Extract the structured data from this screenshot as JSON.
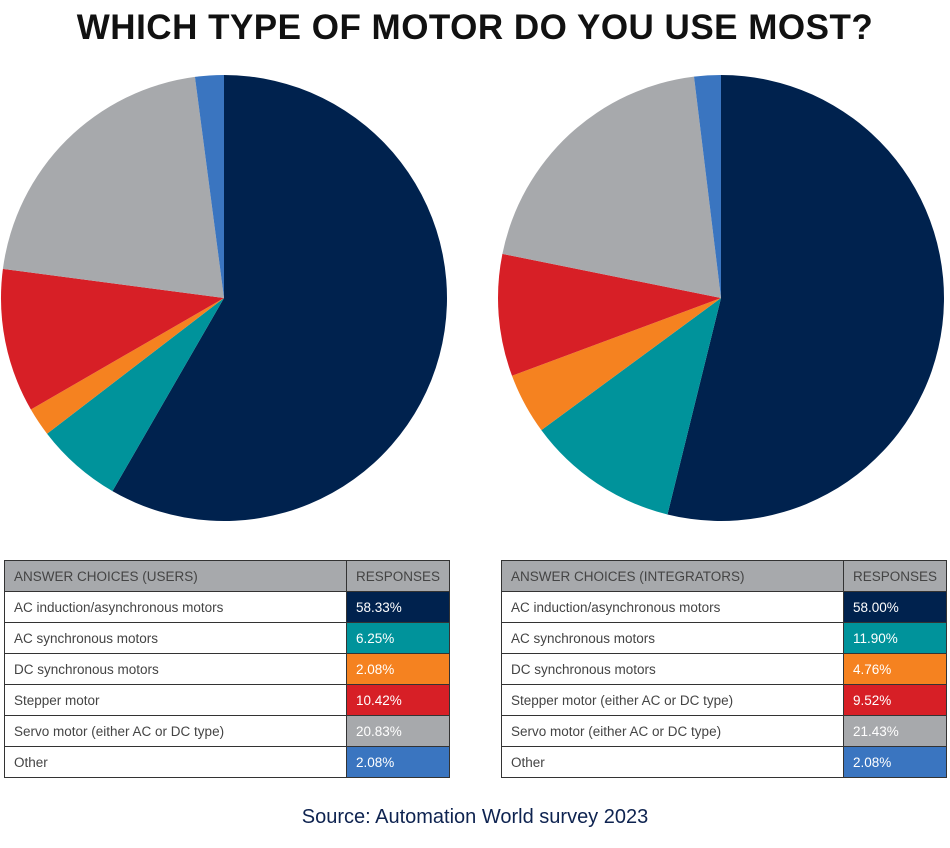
{
  "title": "WHICH TYPE OF MOTOR DO YOU USE MOST?",
  "source": "Source: Automation World survey 2023",
  "colors": [
    "#00224e",
    "#00939b",
    "#f58220",
    "#d71f26",
    "#a7a9ac",
    "#3a75c0"
  ],
  "chart_data": [
    {
      "type": "pie",
      "header": [
        "ANSWER CHOICES (USERS)",
        "RESPONSES"
      ],
      "labels": [
        "AC induction/asynchronous motors",
        "AC synchronous motors",
        "DC synchronous motors",
        "Stepper motor",
        "Servo motor (either AC or DC type)",
        "Other"
      ],
      "display": [
        "58.33%",
        "6.25%",
        "2.08%",
        "10.42%",
        "20.83%",
        "2.08%"
      ],
      "values": [
        58.33,
        6.25,
        2.08,
        10.42,
        20.83,
        2.08
      ]
    },
    {
      "type": "pie",
      "header": [
        "ANSWER CHOICES (INTEGRATORS)",
        "RESPONSES"
      ],
      "labels": [
        "AC induction/asynchronous motors",
        "AC synchronous motors",
        "DC synchronous motors",
        "Stepper motor (either AC or DC type)",
        "Servo motor (either AC or DC type)",
        "Other"
      ],
      "display": [
        "58.00%",
        "11.90%",
        "4.76%",
        "9.52%",
        "21.43%",
        "2.08%"
      ],
      "values": [
        58.0,
        11.9,
        4.76,
        9.52,
        21.43,
        2.08
      ]
    }
  ]
}
